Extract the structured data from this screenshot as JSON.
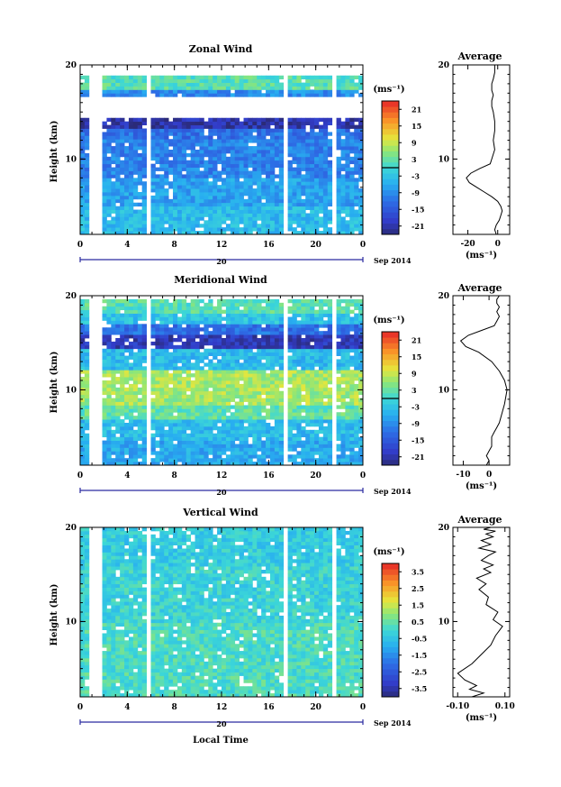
{
  "figure": {
    "xlabel": "Local Time",
    "date_label": "Sep 2014",
    "day_label": "20",
    "ylabel": "Height (km)",
    "avg_title": "Average",
    "unit": "(ms⁻¹)"
  },
  "chart_data": [
    {
      "type": "heatmap",
      "title": "Zonal Wind",
      "xlabel": "",
      "ylabel": "Height (km)",
      "xlim": [
        0,
        24
      ],
      "ylim": [
        2,
        20
      ],
      "x_ticks": [
        "0",
        "4",
        "8",
        "12",
        "16",
        "20",
        "0"
      ],
      "y_ticks": [
        "10",
        "20"
      ],
      "colorbar": {
        "label": "(ms⁻¹)",
        "range": [
          -24,
          24
        ],
        "ticks": [
          "21",
          "15",
          "9",
          "3",
          "-3",
          "-9",
          "-15",
          "-21"
        ],
        "zero_line": 0
      },
      "gaps_hours": [
        [
          0.8,
          1.9
        ],
        [
          5.6,
          5.9
        ],
        [
          17.4,
          17.8
        ],
        [
          21.4,
          21.8
        ]
      ],
      "layers": [
        {
          "y0": 17.2,
          "y1": 19.0,
          "value": 2
        },
        {
          "y0": 16.6,
          "y1": 17.2,
          "value": -9
        },
        {
          "y0": 13.2,
          "y1": 14.4,
          "value": -21
        },
        {
          "y0": 12.0,
          "y1": 13.2,
          "value": -12
        },
        {
          "y0": 8.0,
          "y1": 12.0,
          "value": -10
        },
        {
          "y0": 5.0,
          "y1": 8.0,
          "value": -7
        },
        {
          "y0": 2.0,
          "y1": 5.0,
          "value": -4
        }
      ]
    },
    {
      "type": "line",
      "title": "Average",
      "xlabel": "(ms⁻¹)",
      "xlim": [
        -30,
        8
      ],
      "ylim": [
        2,
        20
      ],
      "x_ticks": [
        "-20",
        "0"
      ],
      "y_ticks": [
        "10",
        "20"
      ],
      "series": [
        {
          "x": [
            -1,
            -2,
            -1,
            1,
            2,
            3,
            2,
            0,
            -4,
            -9,
            -14,
            -19,
            -21,
            -18,
            -12,
            -5,
            -4,
            -2,
            -3,
            -2,
            -2,
            -3,
            -4,
            -4,
            -3,
            -4,
            -4,
            -3,
            -2,
            -2
          ],
          "y": [
            2.0,
            2.5,
            3.0,
            3.5,
            4.0,
            4.5,
            5.0,
            5.5,
            6.0,
            6.5,
            7.0,
            7.5,
            8.0,
            8.5,
            9.0,
            9.5,
            10.0,
            11.0,
            12.0,
            13.0,
            14.0,
            15.0,
            15.6,
            16.2,
            16.8,
            17.3,
            18.0,
            18.5,
            19.2,
            20.0
          ]
        }
      ]
    },
    {
      "type": "heatmap",
      "title": "Meridional Wind",
      "xlabel": "",
      "ylabel": "Height (km)",
      "xlim": [
        0,
        24
      ],
      "ylim": [
        2,
        20
      ],
      "x_ticks": [
        "0",
        "4",
        "8",
        "12",
        "16",
        "20",
        "0"
      ],
      "y_ticks": [
        "10",
        "20"
      ],
      "colorbar": {
        "label": "(ms⁻¹)",
        "range": [
          -24,
          24
        ],
        "ticks": [
          "21",
          "15",
          "9",
          "3",
          "-3",
          "-9",
          "-15",
          "-21"
        ],
        "zero_line": 0
      },
      "gaps_hours": [
        [
          0.8,
          1.9
        ],
        [
          5.6,
          5.9
        ],
        [
          17.4,
          17.8
        ],
        [
          21.4,
          21.8
        ]
      ],
      "layers": [
        {
          "y0": 18.0,
          "y1": 19.5,
          "value": 2
        },
        {
          "y0": 17.0,
          "y1": 18.0,
          "value": -3
        },
        {
          "y0": 15.8,
          "y1": 17.0,
          "value": -12
        },
        {
          "y0": 14.2,
          "y1": 15.8,
          "value": -20
        },
        {
          "y0": 12.2,
          "y1": 14.2,
          "value": -4
        },
        {
          "y0": 8.5,
          "y1": 12.2,
          "value": 7
        },
        {
          "y0": 7.0,
          "y1": 8.5,
          "value": 3
        },
        {
          "y0": 4.5,
          "y1": 7.0,
          "value": -4
        },
        {
          "y0": 2.0,
          "y1": 4.5,
          "value": -6
        }
      ]
    },
    {
      "type": "line",
      "title": "Average",
      "xlabel": "(ms⁻¹)",
      "xlim": [
        -14,
        8
      ],
      "ylim": [
        2,
        20
      ],
      "x_ticks": [
        "-10",
        "0"
      ],
      "y_ticks": [
        "10",
        "20"
      ],
      "series": [
        {
          "x": [
            -1,
            0,
            -1,
            0,
            1,
            1,
            1,
            2,
            3,
            4,
            5,
            6,
            7,
            6,
            4,
            1,
            -4,
            -9,
            -11,
            -8,
            -3,
            2,
            3,
            4,
            3,
            4,
            3,
            3,
            4
          ],
          "y": [
            2.0,
            2.5,
            3.0,
            3.5,
            4.0,
            4.5,
            5.0,
            5.5,
            6.0,
            6.5,
            7.5,
            8.5,
            10.0,
            11.0,
            12.0,
            13.0,
            14.0,
            14.6,
            15.2,
            15.8,
            16.3,
            16.8,
            17.3,
            17.8,
            18.3,
            18.8,
            19.2,
            19.6,
            20.0
          ]
        }
      ]
    },
    {
      "type": "heatmap",
      "title": "Vertical Wind",
      "xlabel": "Local Time",
      "ylabel": "Height (km)",
      "xlim": [
        0,
        24
      ],
      "ylim": [
        2,
        20
      ],
      "x_ticks": [
        "0",
        "4",
        "8",
        "12",
        "16",
        "20",
        "0"
      ],
      "y_ticks": [
        "10",
        "20"
      ],
      "colorbar": {
        "label": "(ms⁻¹)",
        "range": [
          -4,
          4
        ],
        "ticks": [
          "3.5",
          "2.5",
          "1.5",
          "0.5",
          "-0.5",
          "-1.5",
          "-2.5",
          "-3.5"
        ],
        "zero_line": null
      },
      "gaps_hours": [
        [
          0.8,
          1.9
        ],
        [
          5.6,
          5.9
        ],
        [
          17.4,
          17.8
        ],
        [
          21.4,
          21.8
        ]
      ],
      "layers": [
        {
          "y0": 16.0,
          "y1": 20.0,
          "value": -0.3
        },
        {
          "y0": 10.0,
          "y1": 16.0,
          "value": -0.1
        },
        {
          "y0": 2.0,
          "y1": 10.0,
          "value": 0.2
        }
      ]
    },
    {
      "type": "line",
      "title": "Average",
      "xlabel": "(ms⁻¹)",
      "xlim": [
        -0.12,
        0.12
      ],
      "ylim": [
        2,
        20
      ],
      "x_ticks": [
        "-0.10",
        "0.10"
      ],
      "y_ticks": [
        "10",
        "20"
      ],
      "series": [
        {
          "x": [
            -0.04,
            0.01,
            -0.05,
            -0.02,
            -0.07,
            -0.1,
            -0.04,
            0.0,
            0.04,
            0.06,
            0.09,
            0.05,
            0.07,
            0.02,
            0.03,
            -0.01,
            0.02,
            -0.02,
            0.04,
            0.01,
            0.05,
            0.0,
            0.03,
            0.06,
            -0.01,
            0.04,
            0.0,
            0.05,
            0.02,
            0.06,
            0.01,
            0.04
          ],
          "y": [
            2.0,
            2.4,
            2.8,
            3.2,
            3.8,
            4.5,
            5.5,
            6.5,
            7.5,
            8.5,
            9.5,
            10.2,
            11.0,
            11.8,
            12.6,
            13.4,
            14.0,
            14.6,
            15.2,
            15.6,
            16.0,
            16.5,
            17.0,
            17.4,
            17.8,
            18.2,
            18.6,
            19.0,
            19.3,
            19.6,
            19.8,
            20.0
          ]
        }
      ]
    }
  ]
}
